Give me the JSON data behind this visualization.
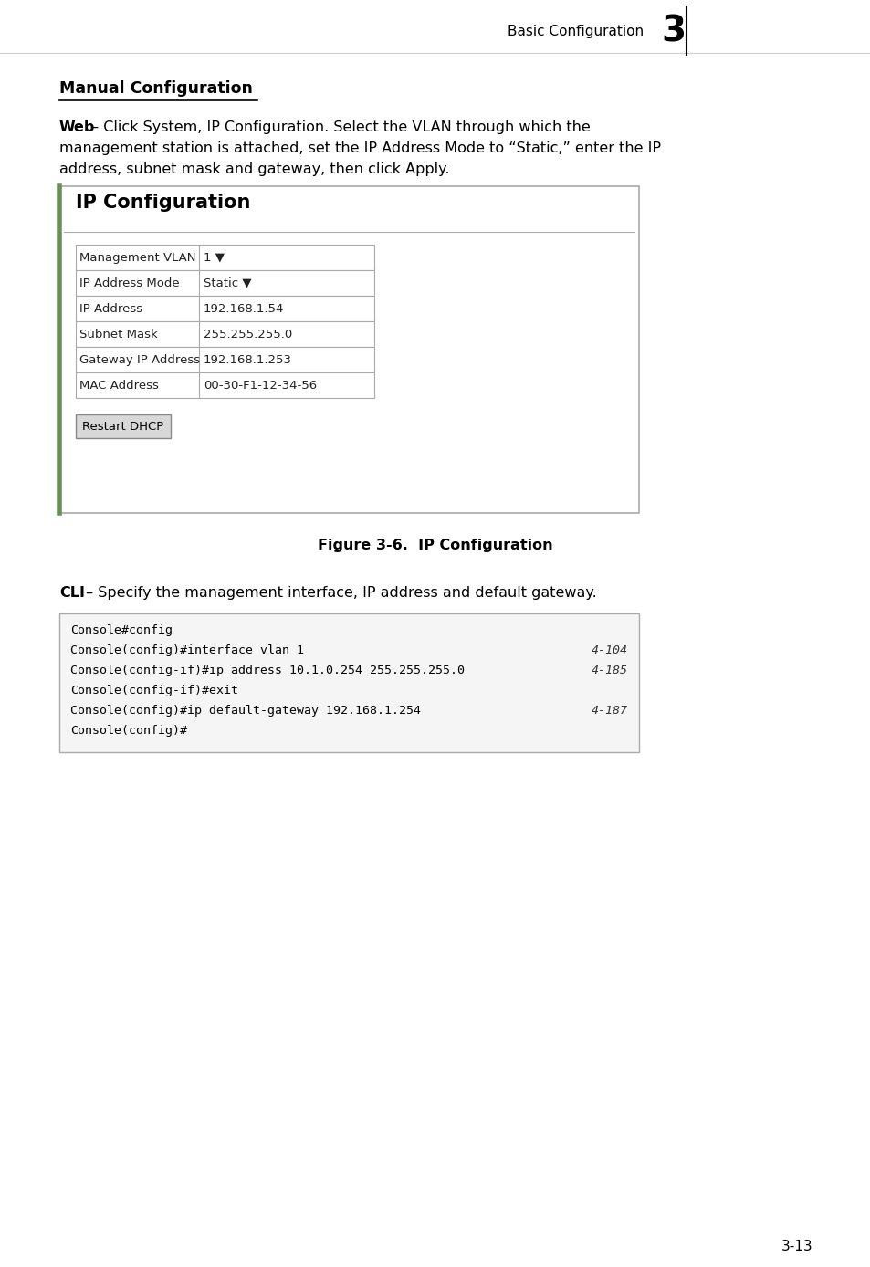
{
  "page_bg": "#ffffff",
  "header_text": "Basic Configuration",
  "header_num": "3",
  "section_title": "Manual Configuration",
  "web_para_bold": "Web",
  "web_line1": " – Click System, IP Configuration. Select the VLAN through which the",
  "web_line2": "management station is attached, set the IP Address Mode to “Static,” enter the IP",
  "web_line3": "address, subnet mask and gateway, then click Apply.",
  "figure_box_title": "IP Configuration",
  "table_rows": [
    [
      "Management VLAN",
      "1 ▼"
    ],
    [
      "IP Address Mode",
      "Static ▼"
    ],
    [
      "IP Address",
      "192.168.1.54"
    ],
    [
      "Subnet Mask",
      "255.255.255.0"
    ],
    [
      "Gateway IP Address",
      "192.168.1.253"
    ],
    [
      "MAC Address",
      "00-30-F1-12-34-56"
    ]
  ],
  "button_label": "Restart DHCP",
  "figure_caption": "Figure 3-6.  IP Configuration",
  "cli_bold": "CLI",
  "cli_rest": " – Specify the management interface, IP address and default gateway.",
  "cli_lines": [
    [
      "Console#config",
      ""
    ],
    [
      "Console(config)#interface vlan 1",
      "4-104"
    ],
    [
      "Console(config-if)#ip address 10.1.0.254 255.255.255.0",
      "4-185"
    ],
    [
      "Console(config-if)#exit",
      ""
    ],
    [
      "Console(config)#ip default-gateway 192.168.1.254",
      "4-187"
    ],
    [
      "Console(config)#",
      ""
    ]
  ],
  "page_num": "3-13",
  "colors": {
    "border_green": "#6b8e5a",
    "box_bg": "#ffffff",
    "cli_bg": "#f5f5f5",
    "cli_border": "#aaaaaa",
    "button_bg": "#d8d8d8",
    "button_border": "#888888",
    "text_dark": "#000000",
    "text_label": "#222222",
    "table_border": "#aaaaaa",
    "header_border": "#cccccc"
  }
}
